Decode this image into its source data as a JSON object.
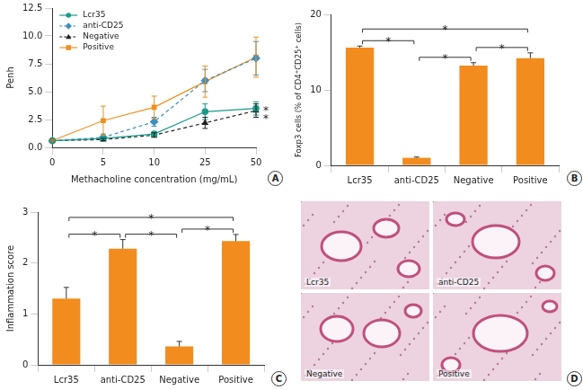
{
  "chart_data": [
    {
      "panel": "A",
      "type": "line",
      "x_label": "Methacholine concentration (mg/mL)",
      "y_label": "Penh",
      "categories": [
        "0",
        "5",
        "10",
        "25",
        "50"
      ],
      "ylim": [
        0,
        12.5
      ],
      "yticks": [
        {
          "value": 0,
          "label": "0.0"
        },
        2.5,
        {
          "value": 5,
          "label": "5.0"
        },
        7.5,
        {
          "value": 10,
          "label": "10.0"
        },
        12.5
      ],
      "grid": false,
      "legend": "upper left",
      "series": [
        {
          "name": "Lcr35",
          "color": "#1a9a8a",
          "marker": "circle",
          "line_style": "solid",
          "values": [
            0.6,
            0.8,
            1.2,
            3.2,
            3.5
          ],
          "errors": [
            0.1,
            0.2,
            0.2,
            0.7,
            0.6
          ]
        },
        {
          "name": "anti-CD25",
          "color": "#3d8fc0",
          "marker": "diamond",
          "line_style": "dashed",
          "values": [
            0.6,
            0.9,
            2.3,
            6.0,
            8.0
          ],
          "errors": [
            0.1,
            0.3,
            0.4,
            1.0,
            1.5
          ]
        },
        {
          "name": "Negative",
          "color": "#222222",
          "marker": "triangle",
          "line_style": "dashed",
          "values": [
            0.6,
            0.7,
            1.1,
            2.2,
            3.3
          ],
          "errors": [
            0.1,
            0.1,
            0.2,
            0.5,
            0.6
          ]
        },
        {
          "name": "Positive",
          "color": "#f0901e",
          "marker": "square",
          "line_style": "solid",
          "values": [
            0.6,
            2.4,
            3.6,
            5.9,
            8.1
          ],
          "errors": [
            0.1,
            1.3,
            1.0,
            1.4,
            1.8
          ]
        }
      ],
      "annotations": [
        {
          "series": "Lcr35",
          "x": "50",
          "text": "*"
        },
        {
          "series": "Negative",
          "x": "50",
          "text": "*"
        }
      ]
    },
    {
      "panel": "B",
      "type": "bar",
      "y_label": "Foxp3 cells (% of CD4⁺CD25⁺ cells)",
      "categories": [
        "Lcr35",
        "anti-CD25",
        "Negative",
        "Positive"
      ],
      "values": [
        15.6,
        1.0,
        13.2,
        14.2
      ],
      "errors": [
        0.2,
        0.1,
        0.4,
        0.7
      ],
      "color": "#f28c1e",
      "ylim": [
        0,
        20
      ],
      "yticks": [
        0,
        10,
        20
      ],
      "grid": false,
      "annotations": [
        {
          "from": "Lcr35",
          "to": "anti-CD25",
          "text": "*"
        },
        {
          "from": "anti-CD25",
          "to": "Negative",
          "text": "*"
        },
        {
          "from": "Negative",
          "to": "Positive",
          "text": "*"
        },
        {
          "from": "Lcr35",
          "to": "Positive",
          "text": "*"
        }
      ]
    },
    {
      "panel": "C",
      "type": "bar",
      "y_label": "Inflammation score",
      "categories": [
        "Lcr35",
        "anti-CD25",
        "Negative",
        "Positive"
      ],
      "values": [
        1.3,
        2.28,
        0.36,
        2.43
      ],
      "errors": [
        0.22,
        0.18,
        0.1,
        0.13
      ],
      "color": "#f28c1e",
      "ylim": [
        0,
        3
      ],
      "yticks": [
        0,
        1,
        2,
        3
      ],
      "grid": false,
      "annotations": [
        {
          "from": "Lcr35",
          "to": "anti-CD25",
          "text": "*"
        },
        {
          "from": "anti-CD25",
          "to": "Negative",
          "text": "*"
        },
        {
          "from": "Negative",
          "to": "Positive",
          "text": "*"
        },
        {
          "from": "Lcr35",
          "to": "Positive",
          "text": "*"
        }
      ]
    }
  ],
  "images": {
    "panel": "D",
    "captions": [
      "Lcr35",
      "anti-CD25",
      "Negative",
      "Positive"
    ]
  }
}
